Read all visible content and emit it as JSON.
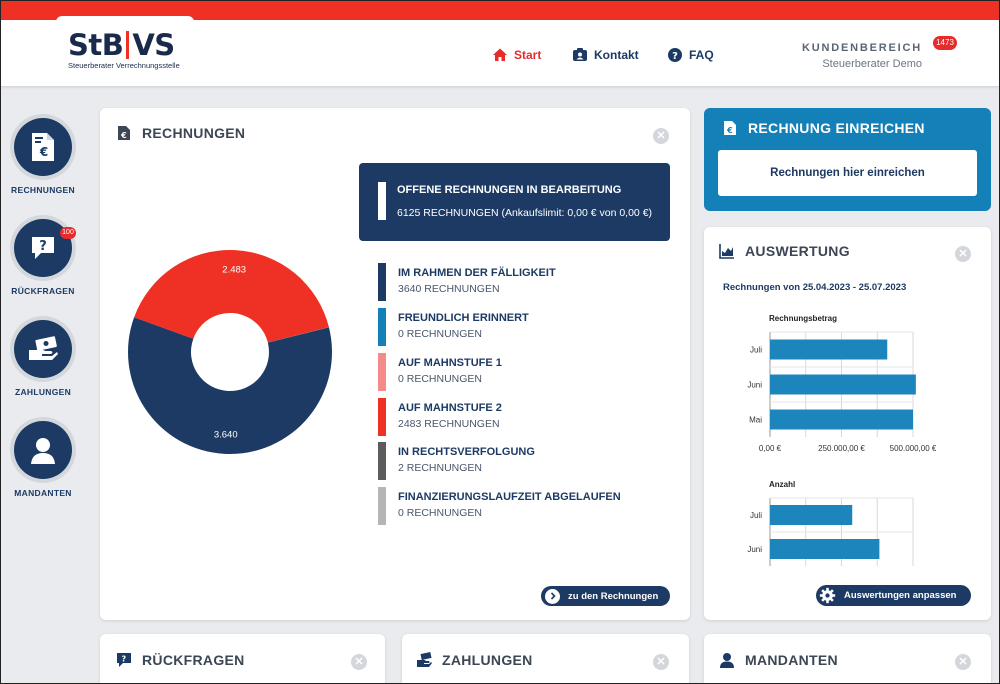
{
  "header": {
    "logo": {
      "main_left": "StB",
      "main_right": "VS",
      "subtitle": "Steuerberater Verrechnungsstelle"
    },
    "nav": [
      {
        "label": "Start",
        "icon": "home-icon",
        "active": true
      },
      {
        "label": "Kontakt",
        "icon": "contact-card-icon",
        "active": false
      },
      {
        "label": "FAQ",
        "icon": "question-circle-icon",
        "active": false
      }
    ],
    "kundenbereich": {
      "title": "KUNDENBEREICH",
      "user": "Steuerberater Demo",
      "badge": "1473"
    }
  },
  "sidebar": {
    "items": [
      {
        "label": "RECHNUNGEN",
        "icon": "invoice-euro-icon",
        "badge": ""
      },
      {
        "label": "RÜCKFRAGEN",
        "icon": "question-bubble-icon",
        "badge": "100"
      },
      {
        "label": "ZAHLUNGEN",
        "icon": "money-hand-icon",
        "badge": ""
      },
      {
        "label": "MANDANTEN",
        "icon": "user-icon",
        "badge": ""
      }
    ]
  },
  "rechnungen": {
    "title": "RECHNUNGEN",
    "offen": {
      "title": "OFFENE RECHNUNGEN IN BEARBEITUNG",
      "summary": "6125 RECHNUNGEN  (Ankaufslimit: 0,00 € von 0,00 €)"
    },
    "statuses": [
      {
        "title": "IM RAHMEN DER FÄLLIGKEIT",
        "value": "3640 RECHNUNGEN",
        "color": "#1c3a63"
      },
      {
        "title": "FREUNDLICH ERINNERT",
        "value": "0 RECHNUNGEN",
        "color": "#1480b8"
      },
      {
        "title": "AUF MAHNSTUFE 1",
        "value": "0 RECHNUNGEN",
        "color": "#f58a8a"
      },
      {
        "title": "AUF MAHNSTUFE 2",
        "value": "2483 RECHNUNGEN",
        "color": "#ee3124"
      },
      {
        "title": "IN RECHTSVERFOLGUNG",
        "value": "2 RECHNUNGEN",
        "color": "#5c5c5c"
      },
      {
        "title": "FINANZIERUNGSLAUFZEIT ABGELAUFEN",
        "value": "0 RECHNUNGEN",
        "color": "#b5b5b5"
      }
    ],
    "button": "zu den Rechnungen"
  },
  "chart_data": [
    {
      "type": "pie",
      "title": "",
      "donut": true,
      "values": [
        3640,
        2483,
        2
      ],
      "labels": [
        "3.640",
        "2.483",
        ""
      ],
      "colors": [
        "#1c3a63",
        "#ee3124",
        "#5c5c5c"
      ]
    },
    {
      "type": "bar",
      "orientation": "horizontal",
      "title": "Rechnungsbetrag",
      "categories": [
        "Juli",
        "Juni",
        "Mai"
      ],
      "values": [
        410000,
        510000,
        500000
      ],
      "xlim": [
        0,
        500000
      ],
      "ticks": [
        "0,00 €",
        "250.000,00 €",
        "500.000,00 €"
      ],
      "color": "#1c86bc",
      "grid": true
    },
    {
      "type": "bar",
      "orientation": "horizontal",
      "title": "Anzahl",
      "categories": [
        "Juli",
        "Juni"
      ],
      "values": [
        1150,
        1530
      ],
      "xlim": [
        0,
        2000
      ],
      "ticks": [],
      "color": "#1c86bc",
      "grid": true
    }
  ],
  "einreichen": {
    "title": "RECHNUNG EINREICHEN",
    "button": "Rechnungen hier einreichen"
  },
  "auswertung": {
    "title": "AUSWERTUNG",
    "range": "Rechnungen von 25.04.2023 - 25.07.2023",
    "button": "Auswertungen anpassen"
  },
  "bottom_cards": {
    "rueckfragen": "RÜCKFRAGEN",
    "zahlungen": "ZAHLUNGEN",
    "mandanten": "MANDANTEN"
  }
}
